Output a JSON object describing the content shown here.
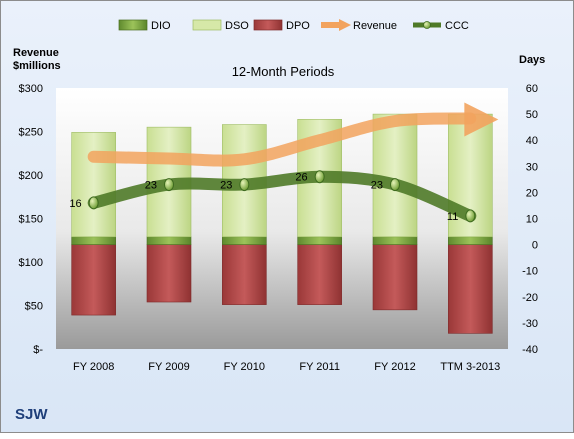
{
  "chart_data": {
    "type": "bar",
    "title": "12-Month Periods",
    "company": "SJW",
    "left_axis_label_line1": "Revenue",
    "left_axis_label_line2": "$millions",
    "right_axis_label": "Days",
    "categories": [
      "FY 2008",
      "FY 2009",
      "FY 2010",
      "FY 2011",
      "FY 2012",
      "TTM 3-2013"
    ],
    "left_ylim": [
      0,
      300
    ],
    "left_ticks": [
      "$-",
      "$50",
      "$100",
      "$150",
      "$200",
      "$250",
      "$300"
    ],
    "right_ylim": [
      -40,
      60
    ],
    "right_ticks": [
      "-40",
      "-30",
      "-20",
      "-10",
      "0",
      "10",
      "20",
      "30",
      "40",
      "50",
      "60"
    ],
    "legend_position": "top",
    "legend": [
      "DIO",
      "DSO",
      "DPO",
      "Revenue",
      "CCC"
    ],
    "series": [
      {
        "name": "DIO",
        "axis": "right",
        "kind": "stacked-bar",
        "color": "#6f9a3a",
        "values": [
          3,
          3,
          3,
          3,
          3,
          3
        ]
      },
      {
        "name": "DSO",
        "axis": "right",
        "kind": "stacked-bar",
        "color": "#d6e8a8",
        "values": [
          40,
          42,
          43,
          45,
          47,
          47
        ]
      },
      {
        "name": "DPO",
        "axis": "right",
        "kind": "bar",
        "color": "#b24a4a",
        "values": [
          -27,
          -22,
          -23,
          -23,
          -25,
          -34
        ]
      },
      {
        "name": "Revenue",
        "axis": "left",
        "kind": "line",
        "color": "#f4a460",
        "values": [
          221,
          219,
          218,
          240,
          262,
          265
        ]
      },
      {
        "name": "CCC",
        "axis": "right",
        "kind": "line",
        "color": "#4f7a28",
        "values": [
          16,
          23,
          23,
          26,
          23,
          11
        ]
      }
    ],
    "grid": false
  }
}
